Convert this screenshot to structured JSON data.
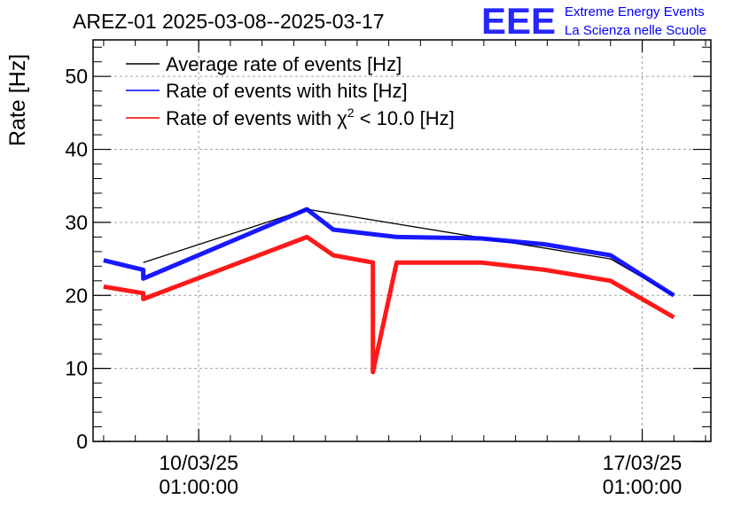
{
  "chart_data": {
    "type": "line",
    "title": "AREZ-01 2025-03-08--2025-03-17",
    "ylabel": "Rate [Hz]",
    "xlabel": "",
    "ylim": [
      0,
      55
    ],
    "xlim": [
      "2025-03-08 09:00",
      "2025-03-18 03:00"
    ],
    "yticks": [
      0,
      10,
      20,
      30,
      40,
      50
    ],
    "xticks": [
      {
        "date": "2025-03-10 01:00:00",
        "line1": "10/03/25",
        "line2": "01:00:00"
      },
      {
        "date": "2025-03-17 01:00:00",
        "line1": "17/03/25",
        "line2": "01:00:00"
      }
    ],
    "grid": true,
    "legend_position": "top-left",
    "series": [
      {
        "name": "Average rate of events [Hz]",
        "color": "#000000",
        "points": [
          {
            "t": "2025-03-09 04:00",
            "y": 24.5
          },
          {
            "t": "2025-03-11 18:00",
            "y": 31.8
          },
          {
            "t": "2025-03-16 13:00",
            "y": 25.0
          },
          {
            "t": "2025-03-17 13:00",
            "y": 20.0
          }
        ]
      },
      {
        "name": "Rate of events with hits [Hz]",
        "color": "#0000ff",
        "points": [
          {
            "t": "2025-03-08 13:00",
            "y": 24.8
          },
          {
            "t": "2025-03-09 04:00",
            "y": 23.5
          },
          {
            "t": "2025-03-09 04:00",
            "y": 22.3
          },
          {
            "t": "2025-03-11 18:00",
            "y": 31.8
          },
          {
            "t": "2025-03-12 04:00",
            "y": 29.0
          },
          {
            "t": "2025-03-13 04:00",
            "y": 28.0
          },
          {
            "t": "2025-03-14 12:00",
            "y": 27.8
          },
          {
            "t": "2025-03-15 12:00",
            "y": 27.0
          },
          {
            "t": "2025-03-16 13:00",
            "y": 25.5
          },
          {
            "t": "2025-03-17 13:00",
            "y": 20.0
          }
        ]
      },
      {
        "name": "Rate of events with χ² < 10.0 [Hz]",
        "color": "#ff0000",
        "points": [
          {
            "t": "2025-03-08 13:00",
            "y": 21.2
          },
          {
            "t": "2025-03-09 04:00",
            "y": 20.3
          },
          {
            "t": "2025-03-09 04:00",
            "y": 19.5
          },
          {
            "t": "2025-03-11 18:00",
            "y": 28.0
          },
          {
            "t": "2025-03-12 04:00",
            "y": 25.5
          },
          {
            "t": "2025-03-12 19:00",
            "y": 24.5
          },
          {
            "t": "2025-03-12 19:00",
            "y": 9.5
          },
          {
            "t": "2025-03-13 04:00",
            "y": 24.5
          },
          {
            "t": "2025-03-14 12:00",
            "y": 24.5
          },
          {
            "t": "2025-03-15 12:00",
            "y": 23.5
          },
          {
            "t": "2025-03-16 13:00",
            "y": 22.0
          },
          {
            "t": "2025-03-17 13:00",
            "y": 17.0
          }
        ]
      }
    ],
    "legend": [
      {
        "label": "Average rate of events [Hz]",
        "color": "#000000"
      },
      {
        "label": "Rate of events with hits [Hz]",
        "color": "#0000ff"
      },
      {
        "label_prefix": "Rate of events with ",
        "label_chi": "χ",
        "label_sup": "2",
        "label_suffix": " < 10.0 [Hz]",
        "color": "#ff0000"
      }
    ]
  },
  "logo": {
    "mark": "EEE",
    "line1": "Extreme Energy Events",
    "line2": "La Scienza nelle Scuole",
    "color": "#0000ff"
  }
}
